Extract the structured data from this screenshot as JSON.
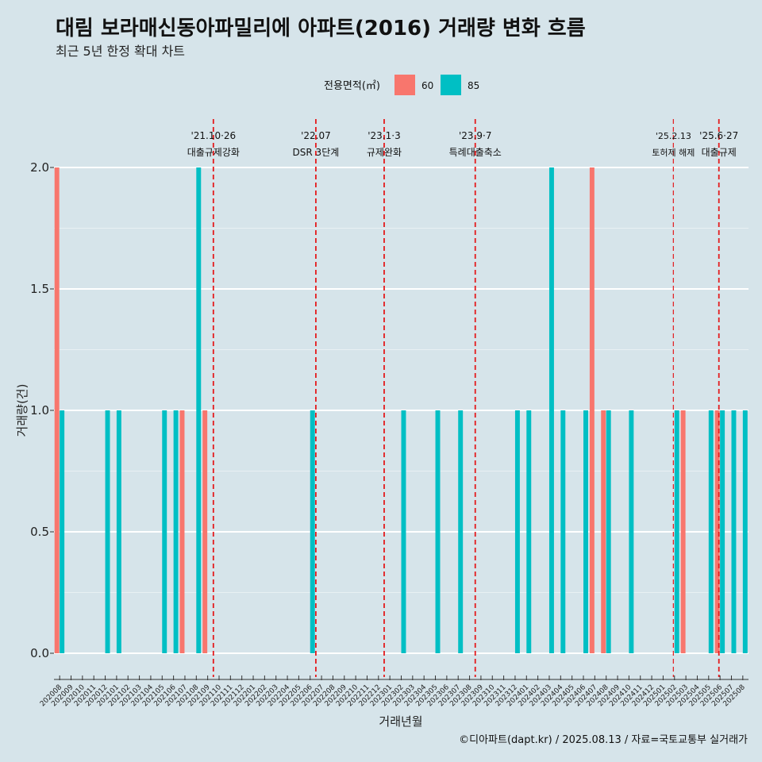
{
  "chart_data": {
    "type": "bar",
    "title": "대림 보라매신동아파밀리에 아파트(2016) 거래량 변화 흐름",
    "subtitle": "최근 5년 한정 확대 차트",
    "xlabel": "거래년월",
    "ylabel": "거래량(건)",
    "caption": "©디아파트(dapt.kr) / 2025.08.13 / 자료=국토교통부 실거래가",
    "ylim": [
      0,
      2
    ],
    "yticks": [
      "0.0",
      "0.5",
      "1.0",
      "1.5",
      "2.0"
    ],
    "legend": {
      "title": "전용면적(㎡)",
      "position": "top"
    },
    "categories": [
      "202008",
      "202009",
      "202010",
      "202011",
      "202012",
      "202101",
      "202102",
      "202103",
      "202104",
      "202105",
      "202106",
      "202107",
      "202108",
      "202109",
      "202110",
      "202111",
      "202112",
      "202201",
      "202202",
      "202203",
      "202204",
      "202205",
      "202206",
      "202207",
      "202208",
      "202209",
      "202210",
      "202211",
      "202212",
      "202301",
      "202302",
      "202303",
      "202304",
      "202305",
      "202306",
      "202307",
      "202308",
      "202309",
      "202310",
      "202311",
      "202312",
      "202401",
      "202402",
      "202403",
      "202404",
      "202405",
      "202406",
      "202407",
      "202408",
      "202409",
      "202410",
      "202411",
      "202412",
      "202501",
      "202502",
      "202503",
      "202504",
      "202505",
      "202506",
      "202507",
      "202508"
    ],
    "series": [
      {
        "name": "60",
        "color": "#f8766d",
        "values": [
          2,
          0,
          0,
          0,
          0,
          0,
          0,
          0,
          0,
          0,
          0,
          1,
          0,
          1,
          0,
          0,
          0,
          0,
          0,
          0,
          0,
          0,
          0,
          0,
          0,
          0,
          0,
          0,
          0,
          0,
          0,
          0,
          0,
          0,
          0,
          0,
          0,
          0,
          0,
          0,
          0,
          0,
          0,
          0,
          0,
          0,
          0,
          2,
          1,
          0,
          0,
          0,
          0,
          0,
          0,
          1,
          0,
          0,
          1,
          0,
          0
        ]
      },
      {
        "name": "85",
        "color": "#00bfc4",
        "values": [
          1,
          0,
          0,
          0,
          1,
          1,
          0,
          0,
          0,
          1,
          1,
          0,
          2,
          0,
          0,
          0,
          0,
          0,
          0,
          0,
          0,
          0,
          1,
          0,
          0,
          0,
          0,
          0,
          0,
          0,
          1,
          0,
          0,
          1,
          0,
          1,
          0,
          0,
          0,
          0,
          1,
          1,
          0,
          2,
          1,
          0,
          1,
          0,
          1,
          0,
          1,
          0,
          0,
          0,
          1,
          0,
          0,
          1,
          1,
          1,
          1
        ]
      }
    ],
    "events": [
      {
        "position": 14.0,
        "date": "'21.10·26",
        "label": "대출규제강화",
        "small": false
      },
      {
        "position": 23.0,
        "date": "'22.07",
        "label": "DSR 3단계",
        "small": false
      },
      {
        "position": 29.0,
        "date": "'23.1·3",
        "label": "규제완화",
        "small": false
      },
      {
        "position": 37.0,
        "date": "'23.9·7",
        "label": "특례대출축소",
        "small": false
      },
      {
        "position": 54.4,
        "date": "'25.2.13",
        "label": "토허제 해제",
        "small": true
      },
      {
        "position": 58.4,
        "date": "'25.6·27",
        "label": "대출규제",
        "small": false
      }
    ]
  }
}
